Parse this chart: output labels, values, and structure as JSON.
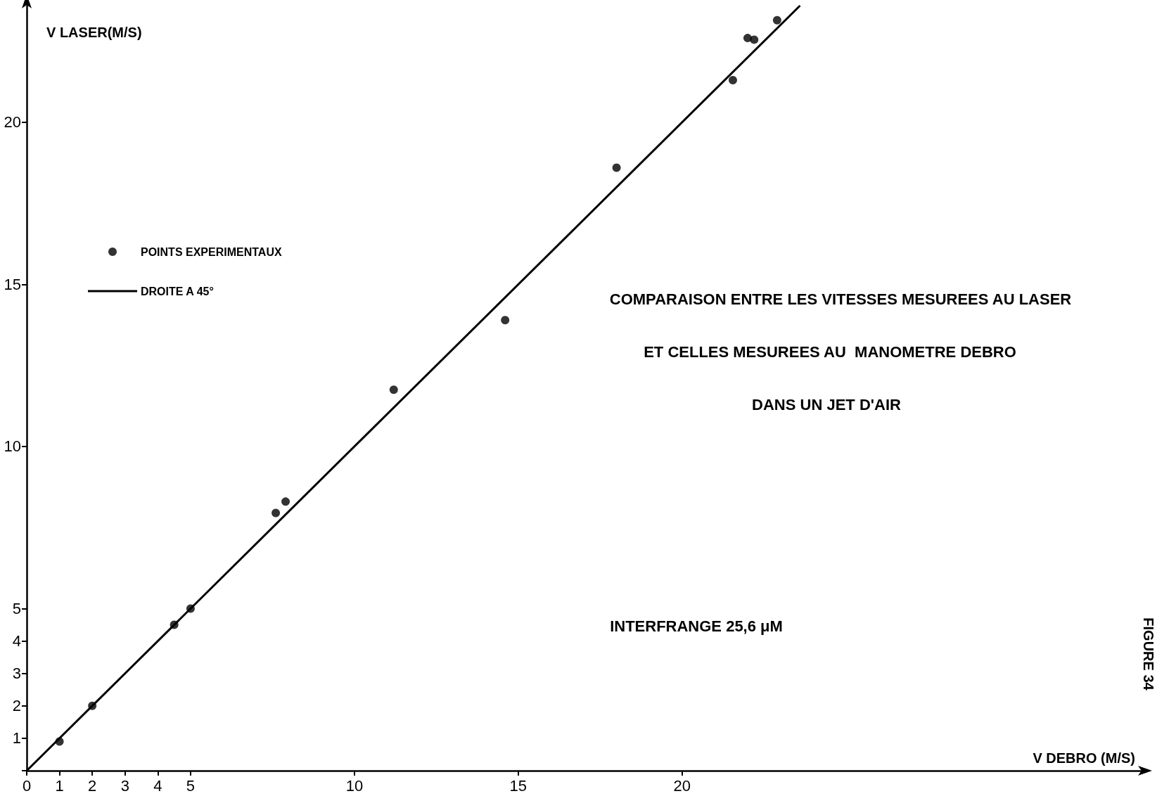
{
  "chart_data": {
    "type": "scatter",
    "xlabel": "V DEBRO (M/S)",
    "ylabel": "V LASER(M/S)",
    "xlim": [
      0,
      34
    ],
    "ylim": [
      0,
      23.6
    ],
    "xticks": [
      0,
      1,
      2,
      3,
      4,
      5,
      10,
      15,
      20
    ],
    "yticks": [
      {
        "value": 0,
        "label": null
      },
      1,
      2,
      3,
      4,
      5,
      10,
      15,
      20
    ],
    "grid": false,
    "legend": "top left",
    "series": [
      {
        "name": "POINTS EXPERIMENTAUX",
        "color": "#000000",
        "marker": "circle",
        "x": [
          1.0,
          2.0,
          4.5,
          5.0,
          7.6,
          7.9,
          11.2,
          14.6,
          18.0,
          21.55,
          22.0,
          22.2,
          22.9
        ],
        "values": [
          0.9,
          2.0,
          4.5,
          5.0,
          7.95,
          8.3,
          11.75,
          13.9,
          18.6,
          21.3,
          22.6,
          22.55,
          23.15
        ]
      },
      {
        "name": "DROITE A 45°",
        "type": "line",
        "color": "#000000",
        "marker": "none",
        "line_style": "solid",
        "x": [
          0,
          23.6
        ],
        "values": [
          0,
          23.6
        ]
      }
    ],
    "annotations": [
      "COMPARAISON ENTRE LES VITESSES MESUREES AU LASER",
      "ET CELLES MESUREES AU  MANOMETRE DEBRO",
      "DANS UN JET D'AIR",
      "INTERFRANGE 25,6 μM",
      "FIGURE 34"
    ]
  }
}
